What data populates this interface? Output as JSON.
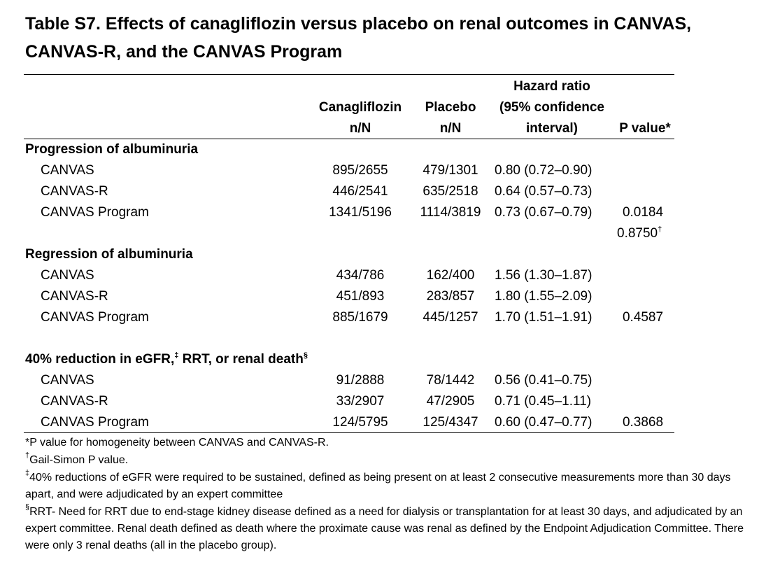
{
  "title": "Table S7.  Effects of canagliflozin versus placebo on renal outcomes in CANVAS, CANVAS-R, and the CANVAS Program",
  "columns": {
    "cana": [
      "Canagliflozin",
      "n/N"
    ],
    "placebo": [
      "Placebo",
      "n/N"
    ],
    "hr": [
      "Hazard ratio",
      "(95% confidence",
      "interval)"
    ],
    "p": "P value*"
  },
  "sections": [
    {
      "heading": "Progression of albuminuria",
      "heading_sup": "",
      "heading_tail": "",
      "heading_sup2": "",
      "rows": [
        {
          "label": "CANVAS",
          "cana": "895/2655",
          "placebo": "479/1301",
          "hr": "0.80 (0.72–0.90)",
          "p": ""
        },
        {
          "label": "CANVAS-R",
          "cana": "446/2541",
          "placebo": "635/2518",
          "hr": "0.64 (0.57–0.73)",
          "p": ""
        },
        {
          "label": "CANVAS Program",
          "cana": "1341/5196",
          "placebo": "1114/3819",
          "hr": "0.73 (0.67–0.79)",
          "p": "0.0184",
          "p2": "0.8750",
          "p2_sup": "†"
        }
      ]
    },
    {
      "heading": "Regression of albuminuria",
      "rows": [
        {
          "label": "CANVAS",
          "cana": "434/786",
          "placebo": "162/400",
          "hr": "1.56 (1.30–1.87)",
          "p": ""
        },
        {
          "label": "CANVAS-R",
          "cana": "451/893",
          "placebo": "283/857",
          "hr": "1.80 (1.55–2.09)",
          "p": ""
        },
        {
          "label": "CANVAS Program",
          "cana": "885/1679",
          "placebo": "445/1257",
          "hr": "1.70 (1.51–1.91)",
          "p": "0.4587"
        }
      ]
    },
    {
      "heading": "40% reduction in eGFR,",
      "heading_sup": "‡",
      "heading_tail": " RRT, or renal death",
      "heading_sup2": "§",
      "rows": [
        {
          "label": "CANVAS",
          "cana": "91/2888",
          "placebo": "78/1442",
          "hr": "0.56 (0.41–0.75)",
          "p": ""
        },
        {
          "label": "CANVAS-R",
          "cana": "33/2907",
          "placebo": "47/2905",
          "hr": "0.71 (0.45–1.11)",
          "p": ""
        },
        {
          "label": "CANVAS Program",
          "cana": "124/5795",
          "placebo": "125/4347",
          "hr": "0.60 (0.47–0.77)",
          "p": "0.3868"
        }
      ]
    }
  ],
  "footnotes": [
    {
      "mark": "",
      "text": "*P value for homogeneity between CANVAS and CANVAS-R."
    },
    {
      "mark": "†",
      "text": "Gail-Simon P value."
    },
    {
      "mark": "‡",
      "text": "40% reductions of eGFR were required to be sustained, defined as being present on at least 2 consecutive measurements more than 30 days apart, and were adjudicated by an expert committee"
    },
    {
      "mark": "§",
      "text": "RRT- Need for RRT due to end-stage kidney disease defined as a need for dialysis or transplantation for at least 30 days, and adjudicated by an expert committee. Renal death defined as death where the proximate cause was renal as defined by the Endpoint Adjudication Committee.  There were only 3 renal deaths (all in the placebo group)."
    }
  ]
}
